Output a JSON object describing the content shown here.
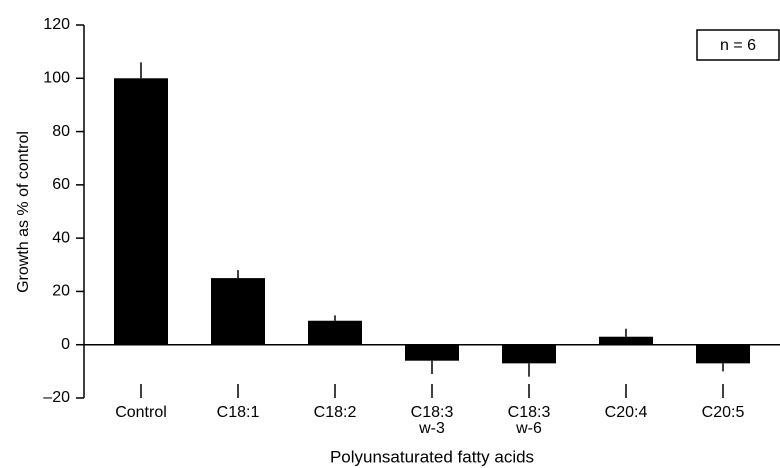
{
  "chart_data": {
    "type": "bar",
    "categories": [
      "Control",
      "C18:1",
      "C18:2",
      "C18:3\nw-3",
      "C18:3\nw-6",
      "C20:4",
      "C20:5"
    ],
    "values": [
      100,
      25,
      9,
      -6,
      -7,
      3,
      -7
    ],
    "errors": [
      6,
      3,
      2,
      5,
      5,
      3,
      3
    ],
    "color": "#000000",
    "ylim": [
      -20,
      120
    ],
    "yticks": [
      {
        "value": -20,
        "label": "–20"
      },
      0,
      20,
      40,
      60,
      80,
      100,
      120
    ],
    "y_label": "Growth as % of control",
    "x_label": "Polyunsaturated fatty acids",
    "annotation": "n = 6"
  }
}
